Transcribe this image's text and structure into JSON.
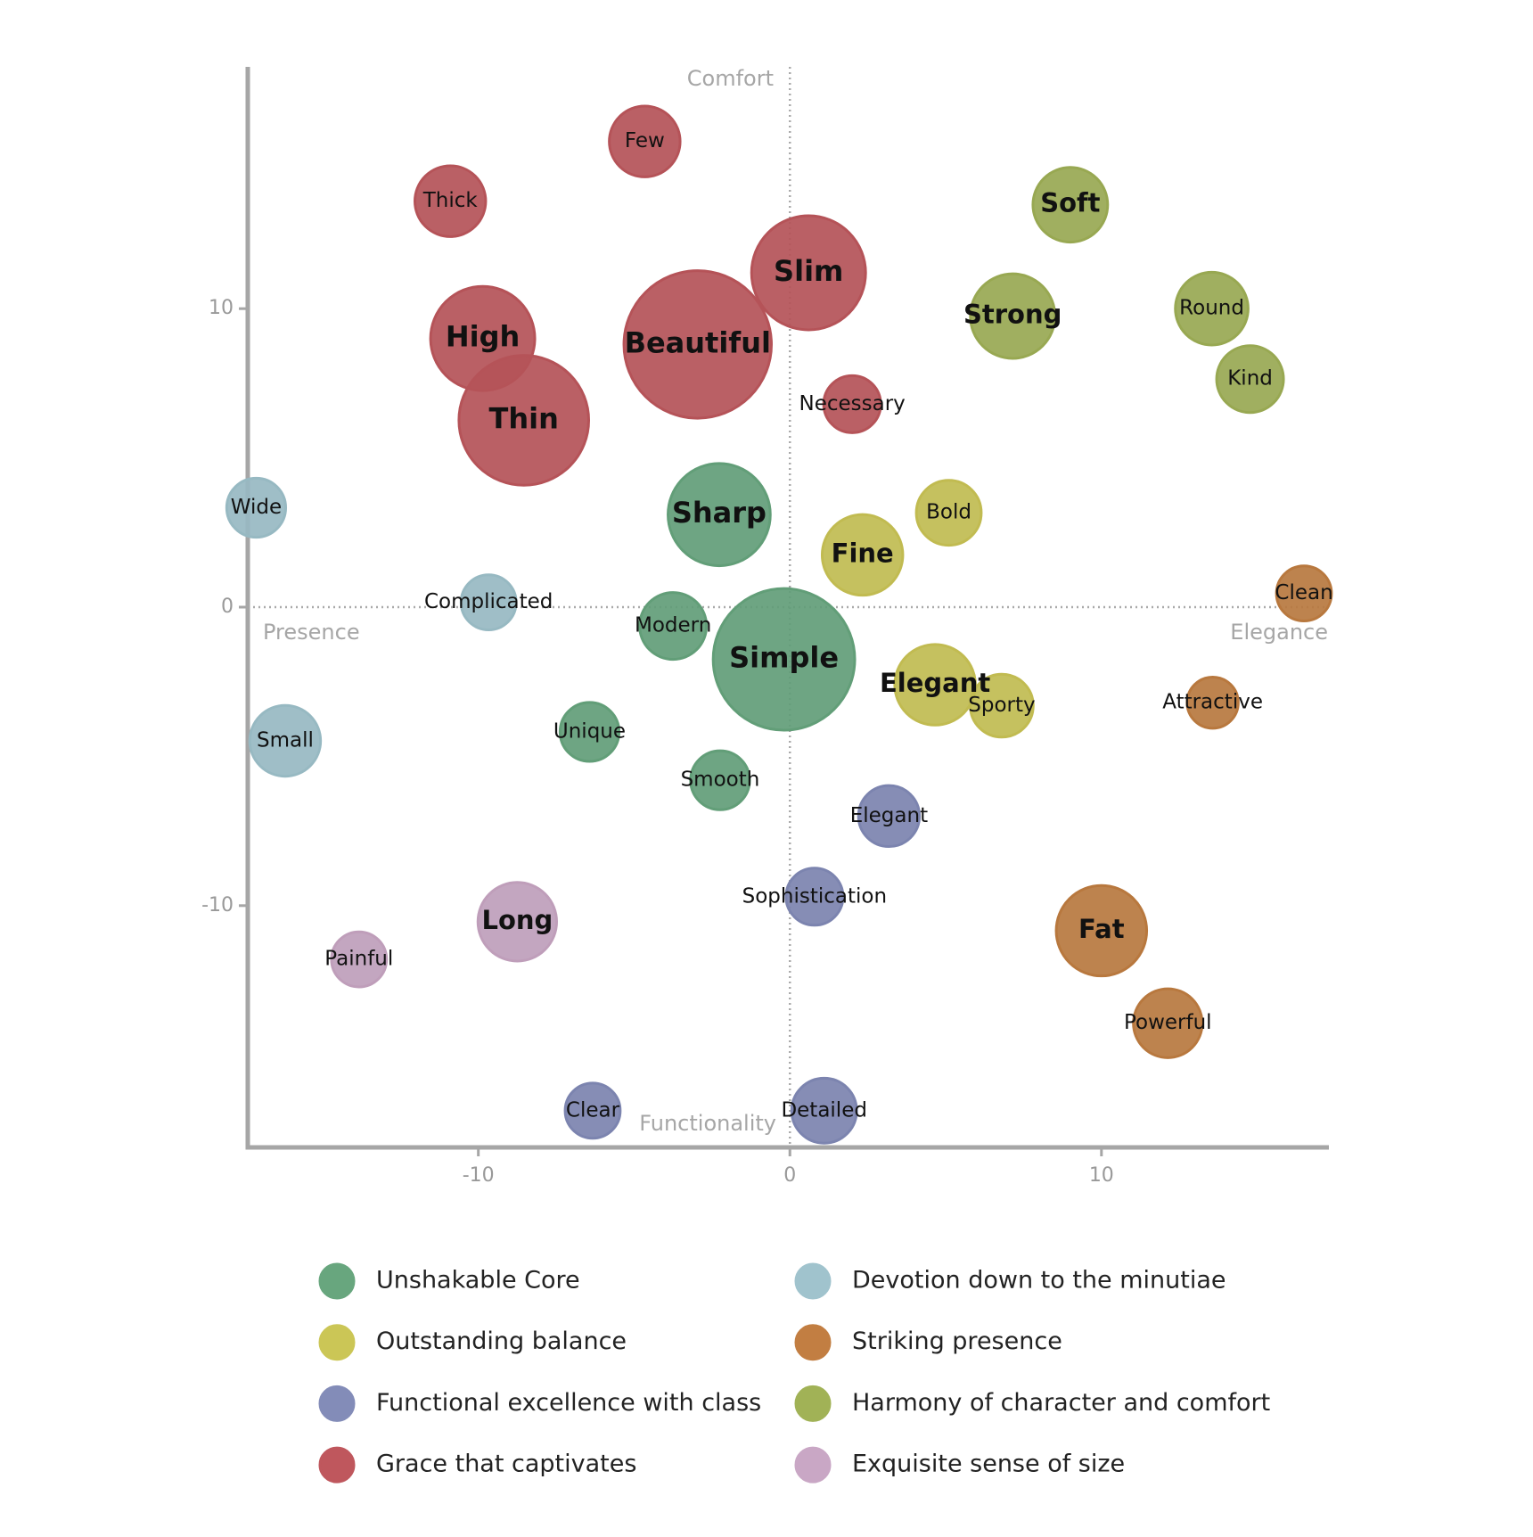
{
  "chart_data": {
    "type": "bubble",
    "quadrant_labels": {
      "top": "Comfort",
      "bottom": "Functionality",
      "left": "Presence",
      "right": "Elegance"
    },
    "xlim": [
      -17.4,
      17.3
    ],
    "ylim": [
      -18.1,
      18.1
    ],
    "xticks": [
      -10,
      0,
      10
    ],
    "yticks": [
      -10,
      0,
      10
    ],
    "series": [
      {
        "name": "Unshakable Core",
        "color": "#6daf85",
        "labels": [
          "Sharp",
          "Modern",
          "Simple",
          "Unique",
          "Smooth"
        ],
        "x": [
          -2.27,
          -3.75,
          -0.19,
          -6.43,
          -2.24
        ],
        "y": [
          3.1,
          -0.63,
          -1.75,
          -4.18,
          -5.8
        ],
        "size": [
          5.2,
          3.4,
          7.2,
          3.0,
          3.0
        ]
      },
      {
        "name": "Outstanding balance",
        "color": "#d6d05a",
        "labels": [
          "Bold",
          "Fine",
          "Elegant",
          "Sporty"
        ],
        "x": [
          5.1,
          2.33,
          4.66,
          6.8
        ],
        "y": [
          3.16,
          1.75,
          -2.6,
          -3.3
        ],
        "size": [
          3.3,
          4.1,
          4.1,
          3.2
        ]
      },
      {
        "name": "Functional excellence with class",
        "color": "#8a93c2",
        "labels": [
          "Elegant",
          "Sophistication",
          "Clear",
          "Detailed"
        ],
        "x": [
          3.18,
          0.79,
          -6.33,
          1.1
        ],
        "y": [
          -7.0,
          -9.7,
          -16.87,
          -16.87
        ],
        "size": [
          3.1,
          2.9,
          2.8,
          3.3
        ]
      },
      {
        "name": "Grace that captivates",
        "color": "#c95c62",
        "labels": [
          "Few",
          "Thick",
          "Slim",
          "High",
          "Beautiful",
          "Thin",
          "Necessary"
        ],
        "x": [
          -4.66,
          -10.9,
          0.6,
          -9.86,
          -2.96,
          -8.54,
          2.0
        ],
        "y": [
          15.6,
          13.6,
          11.2,
          9.0,
          8.8,
          6.26,
          6.8
        ],
        "size": [
          3.6,
          3.6,
          5.8,
          5.3,
          7.5,
          6.6,
          2.9
        ]
      },
      {
        "name": "Devotion down to the minutiae",
        "color": "#a8cdd8",
        "labels": [
          "Wide",
          "Complicated",
          "Small"
        ],
        "x": [
          -17.13,
          -9.67,
          -16.2
        ],
        "y": [
          3.33,
          0.16,
          -4.48
        ],
        "size": [
          3.0,
          2.8,
          3.6
        ]
      },
      {
        "name": "Striking presence",
        "color": "#cc8545",
        "labels": [
          "Clean",
          "Attractive",
          "Fat",
          "Powerful"
        ],
        "x": [
          16.5,
          13.57,
          10.0,
          12.13
        ],
        "y": [
          0.46,
          -3.2,
          -10.84,
          -13.94
        ],
        "size": [
          2.8,
          2.6,
          4.6,
          3.5
        ]
      },
      {
        "name": "Harmony of character and comfort",
        "color": "#a9bb5b",
        "labels": [
          "Soft",
          "Strong",
          "Round",
          "Kind"
        ],
        "x": [
          9.0,
          7.15,
          13.54,
          14.77
        ],
        "y": [
          13.48,
          9.75,
          10.0,
          7.64
        ],
        "size": [
          3.8,
          4.3,
          3.7,
          3.4
        ]
      },
      {
        "name": "Exquisite sense of size",
        "color": "#d4b0cf",
        "labels": [
          "Long",
          "Painful"
        ],
        "x": [
          -8.75,
          -13.83
        ],
        "y": [
          -10.54,
          -11.8
        ],
        "size": [
          4.0,
          2.8
        ]
      }
    ]
  }
}
